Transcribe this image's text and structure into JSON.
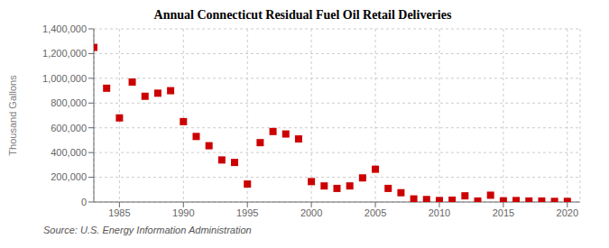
{
  "chart_data": {
    "type": "scatter",
    "title": "Annual Connecticut Residual Fuel Oil Retail Deliveries",
    "ylabel": "Thousand Gallons",
    "source": "Source: U.S. Energy Information Administration",
    "x": [
      1983,
      1984,
      1985,
      1986,
      1987,
      1988,
      1989,
      1990,
      1991,
      1992,
      1993,
      1994,
      1995,
      1996,
      1997,
      1998,
      1999,
      2000,
      2001,
      2002,
      2003,
      2004,
      2005,
      2006,
      2007,
      2008,
      2009,
      2010,
      2011,
      2012,
      2013,
      2014,
      2015,
      2016,
      2017,
      2018,
      2019,
      2020
    ],
    "values": [
      1250000,
      920000,
      680000,
      970000,
      855000,
      880000,
      900000,
      650000,
      530000,
      455000,
      340000,
      320000,
      145000,
      480000,
      570000,
      550000,
      510000,
      165000,
      130000,
      110000,
      130000,
      195000,
      265000,
      110000,
      75000,
      25000,
      20000,
      12000,
      15000,
      50000,
      8000,
      55000,
      10000,
      12000,
      8000,
      8000,
      5000,
      5000
    ],
    "color": "#cc0000",
    "marker": "square",
    "grid": true,
    "xlim": [
      1983,
      2021
    ],
    "xticks": [
      1985,
      1990,
      1995,
      2000,
      2005,
      2010,
      2015,
      2020
    ],
    "ylim": [
      0,
      1400000
    ],
    "yticks": [
      0,
      {
        "value": 200000,
        "label": "200,000"
      },
      {
        "value": 400000,
        "label": "400,000"
      },
      {
        "value": 600000,
        "label": "600,000"
      },
      {
        "value": 800000,
        "label": "800,000"
      },
      {
        "value": 1000000,
        "label": "1,000,000"
      },
      {
        "value": 1200000,
        "label": "1,200,000"
      },
      {
        "value": 1400000,
        "label": "1,400,000"
      }
    ]
  }
}
